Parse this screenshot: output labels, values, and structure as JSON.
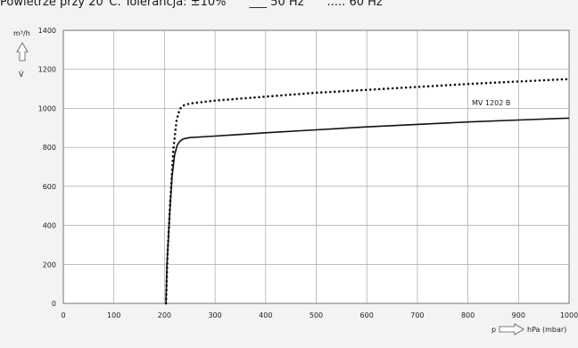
{
  "caption": {
    "text": "Powietrze przy 20°C. Tolerancja: ±10%",
    "legend_50": "___ 50 Hz",
    "legend_60": "..... 60 Hz"
  },
  "chart_data": {
    "type": "line",
    "xlabel_symbol": "p",
    "xlabel_unit": "hPa (mbar)",
    "ylabel_unit": "m³/h",
    "ylabel_symbol": "V̇",
    "xlim": [
      0,
      1000
    ],
    "ylim": [
      0,
      1400
    ],
    "x_ticks": [
      0,
      100,
      200,
      300,
      400,
      500,
      600,
      700,
      800,
      900,
      1000
    ],
    "y_ticks": [
      0,
      200,
      400,
      600,
      800,
      1000,
      1200,
      1400
    ],
    "grid": true,
    "annotation": "MV 1202 B",
    "series": [
      {
        "name": "50 Hz",
        "style": "solid",
        "x": [
          203,
          205,
          210,
          215,
          220,
          225,
          230,
          235,
          240,
          250,
          300,
          400,
          500,
          600,
          700,
          800,
          900,
          1000
        ],
        "y": [
          0,
          200,
          450,
          650,
          760,
          810,
          830,
          840,
          845,
          850,
          858,
          875,
          890,
          905,
          918,
          930,
          940,
          950
        ]
      },
      {
        "name": "60 Hz",
        "style": "dotted",
        "x": [
          203,
          206,
          212,
          218,
          224,
          230,
          235,
          240,
          250,
          300,
          400,
          500,
          600,
          700,
          800,
          900,
          1000
        ],
        "y": [
          0,
          250,
          550,
          800,
          940,
          995,
          1010,
          1018,
          1025,
          1040,
          1060,
          1080,
          1095,
          1110,
          1125,
          1138,
          1150
        ]
      }
    ]
  }
}
